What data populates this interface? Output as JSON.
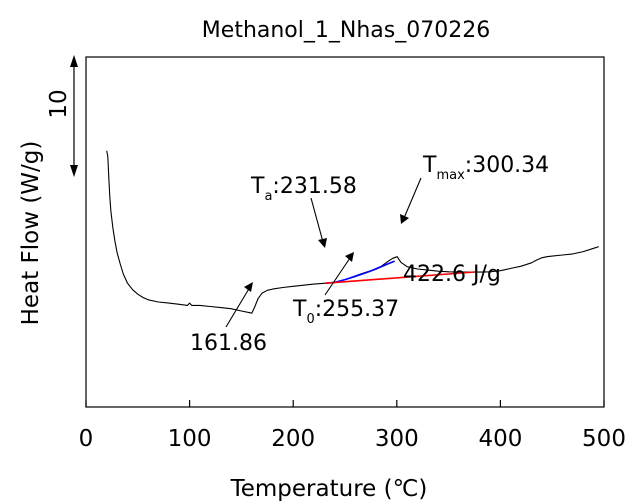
{
  "chart_data": {
    "type": "line",
    "title": "Methanol_1_Nhas_070226",
    "xlabel": "Temperature (℃)",
    "ylabel": "Heat Flow (W/g)",
    "xlim": [
      0,
      500
    ],
    "x_ticks": [
      "0",
      "100",
      "200",
      "300",
      "400",
      "500"
    ],
    "scale_bar": {
      "label": "10",
      "value": 10
    },
    "grid": false,
    "series": [
      {
        "color": "#000000",
        "x": [
          20,
          21,
          22,
          23,
          24,
          26,
          28,
          30,
          33,
          36,
          40,
          45,
          50,
          55,
          60,
          70,
          80,
          90,
          98,
          100,
          102,
          110,
          120,
          130,
          140,
          150,
          158,
          160,
          163,
          166,
          170,
          175,
          180,
          190,
          200,
          210,
          220,
          231.58,
          240,
          250,
          255.37,
          265,
          275,
          285,
          292,
          296,
          300.34,
          304,
          310,
          320,
          330,
          340,
          350,
          360,
          370,
          380,
          390,
          400,
          410,
          420,
          430,
          435,
          440,
          445,
          450,
          460,
          470,
          480,
          490,
          495
        ],
        "y": [
          8.9,
          8.4,
          6.5,
          4.8,
          3.5,
          2.0,
          0.8,
          -0.2,
          -1.2,
          -2.1,
          -2.9,
          -3.5,
          -3.9,
          -4.2,
          -4.4,
          -4.6,
          -4.7,
          -4.8,
          -4.9,
          -4.7,
          -4.9,
          -4.9,
          -5.0,
          -5.1,
          -5.2,
          -5.4,
          -5.55,
          -5.6,
          -5.0,
          -4.3,
          -3.8,
          -3.55,
          -3.45,
          -3.3,
          -3.2,
          -3.1,
          -3.0,
          -2.92,
          -2.85,
          -2.6,
          -2.42,
          -2.1,
          -1.8,
          -1.4,
          -0.95,
          -0.7,
          -0.55,
          -1.05,
          -1.45,
          -1.65,
          -1.75,
          -1.85,
          -1.9,
          -1.92,
          -1.93,
          -1.93,
          -1.9,
          -1.8,
          -1.6,
          -1.4,
          -1.1,
          -0.85,
          -0.65,
          -0.55,
          -0.5,
          -0.4,
          -0.3,
          -0.1,
          0.2,
          0.35
        ]
      },
      {
        "color": "#0000ff",
        "x": [
          231.58,
          240,
          250,
          260,
          270,
          280,
          290,
          298
        ],
        "y": [
          -2.92,
          -2.85,
          -2.6,
          -2.3,
          -2.0,
          -1.65,
          -1.25,
          -0.95
        ]
      },
      {
        "color": "#ff0000",
        "x": [
          231.58,
          375
        ],
        "y": [
          -2.92,
          -1.92
        ]
      }
    ],
    "annotations": [
      {
        "label": "161.86",
        "x": 161.86,
        "y": -5.5
      },
      {
        "prefix": "T",
        "sub": "a",
        "value": ":231.58",
        "x": 231.58,
        "y": -2.92
      },
      {
        "prefix": "T",
        "sub": "max",
        "value": ":300.34",
        "x": 300.34,
        "y": -0.55
      },
      {
        "prefix": "T",
        "sub": "0",
        "value": ":255.37",
        "x": 255.37,
        "y": -2.42
      },
      {
        "label": "422.6 J/g"
      }
    ]
  }
}
